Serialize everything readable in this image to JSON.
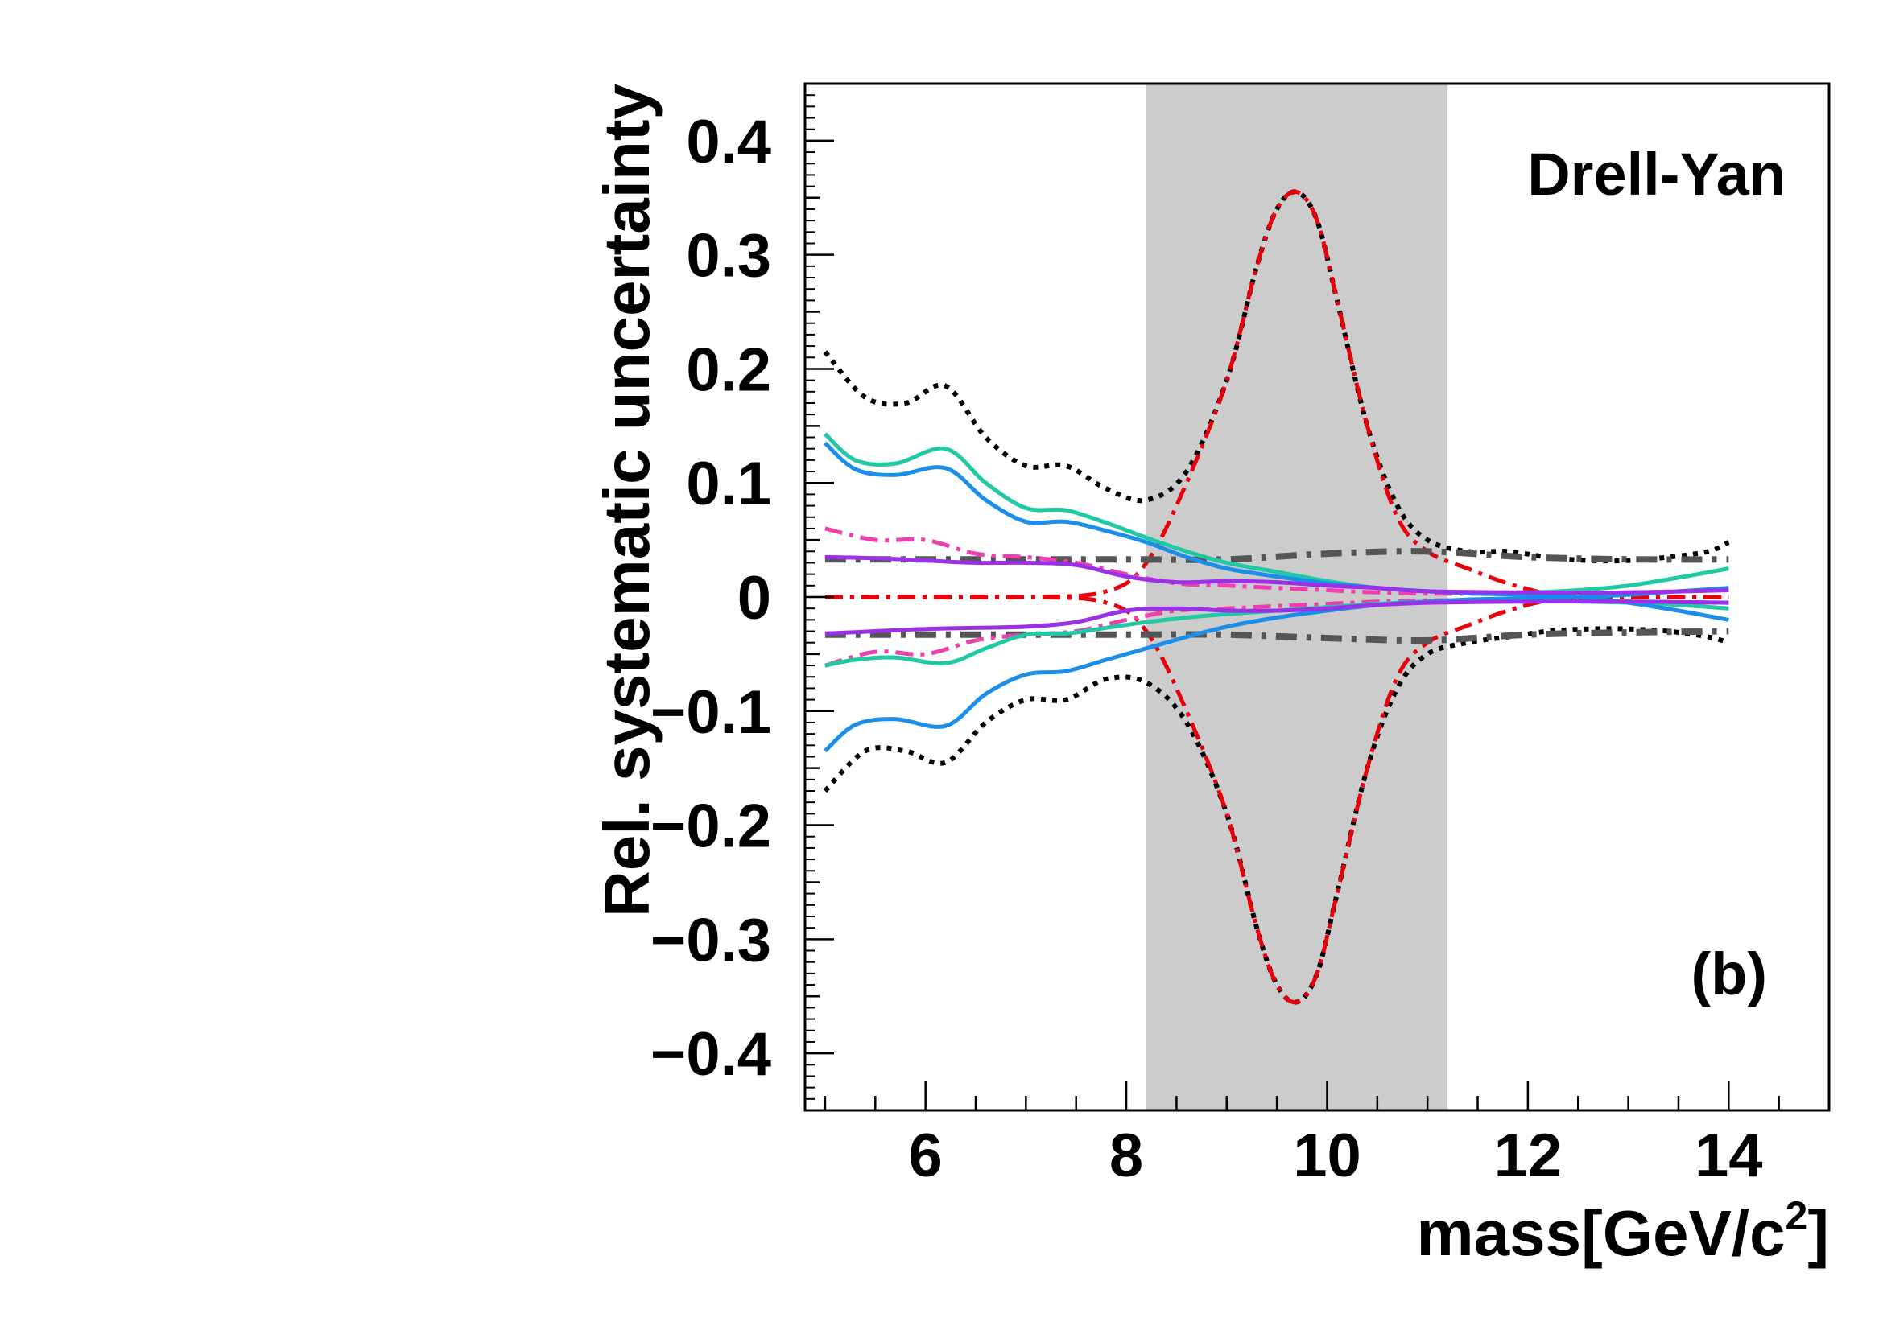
{
  "chart_data": {
    "type": "line",
    "title": "",
    "xlabel": "mass[GeV/c",
    "xlabel_sup": "2",
    "xlabel_end": "]",
    "ylabel": "Rel. systematic uncertainty",
    "xlim": [
      4.8,
      15.0
    ],
    "ylim": [
      -0.45,
      0.45
    ],
    "grid": false,
    "legend": "none",
    "x_ticks": [
      6,
      8,
      10,
      12,
      14
    ],
    "y_ticks": [
      -0.4,
      -0.3,
      -0.2,
      -0.1,
      0,
      0.1,
      0.2,
      0.3,
      0.4
    ],
    "y_tick_labels": [
      "−0.4",
      "−0.3",
      "−0.2",
      "−0.1",
      "0",
      "0.1",
      "0.2",
      "0.3",
      "0.4"
    ],
    "annotations": {
      "process": "Drell-Yan",
      "panel": "(b)"
    },
    "shaded_band": {
      "x": [
        8.2,
        11.2
      ],
      "color": "#cccccc"
    },
    "series": [
      {
        "color": "#000000",
        "style": "dotted",
        "x": [
          5.0,
          5.4,
          5.8,
          6.2,
          6.6,
          7.0,
          7.4,
          7.8,
          8.2,
          8.6,
          9.0,
          9.3,
          9.5,
          9.7,
          9.9,
          10.1,
          10.4,
          10.7,
          11.0,
          11.4,
          11.8,
          12.2,
          12.6,
          13.0,
          13.4,
          13.8,
          14.0
        ],
        "y": [
          0.215,
          0.175,
          0.17,
          0.185,
          0.14,
          0.115,
          0.115,
          0.095,
          0.085,
          0.11,
          0.19,
          0.29,
          0.34,
          0.355,
          0.33,
          0.26,
          0.15,
          0.08,
          0.05,
          0.04,
          0.04,
          0.035,
          0.032,
          0.032,
          0.035,
          0.04,
          0.048
        ]
      },
      {
        "color": "#000000",
        "style": "dotted",
        "x": [
          5.0,
          5.4,
          5.8,
          6.2,
          6.6,
          7.0,
          7.4,
          7.8,
          8.2,
          8.6,
          9.0,
          9.3,
          9.5,
          9.7,
          9.9,
          10.1,
          10.4,
          10.7,
          11.0,
          11.4,
          11.8,
          12.2,
          12.6,
          13.0,
          13.4,
          13.8,
          14.0
        ],
        "y": [
          -0.17,
          -0.135,
          -0.135,
          -0.145,
          -0.11,
          -0.09,
          -0.09,
          -0.072,
          -0.075,
          -0.11,
          -0.19,
          -0.29,
          -0.34,
          -0.355,
          -0.33,
          -0.26,
          -0.15,
          -0.08,
          -0.05,
          -0.04,
          -0.035,
          -0.03,
          -0.028,
          -0.028,
          -0.03,
          -0.035,
          -0.04
        ]
      },
      {
        "color": "#e8000b",
        "style": "dashdot",
        "x": [
          5.0,
          7.0,
          7.8,
          8.2,
          8.6,
          9.0,
          9.3,
          9.5,
          9.7,
          9.9,
          10.1,
          10.4,
          10.7,
          11.0,
          11.4,
          11.8,
          12.2,
          12.6,
          13.0,
          14.0
        ],
        "y": [
          0.0,
          0.0,
          0.005,
          0.03,
          0.1,
          0.19,
          0.29,
          0.34,
          0.355,
          0.33,
          0.26,
          0.15,
          0.07,
          0.04,
          0.025,
          0.012,
          0.003,
          0.0,
          0.0,
          0.0
        ]
      },
      {
        "color": "#e8000b",
        "style": "dashdot",
        "x": [
          5.0,
          7.0,
          7.8,
          8.2,
          8.6,
          9.0,
          9.3,
          9.5,
          9.7,
          9.9,
          10.1,
          10.4,
          10.7,
          11.0,
          11.4,
          11.8,
          12.2,
          12.6,
          13.0,
          14.0
        ],
        "y": [
          0.0,
          0.0,
          -0.005,
          -0.03,
          -0.1,
          -0.19,
          -0.29,
          -0.34,
          -0.355,
          -0.33,
          -0.26,
          -0.15,
          -0.07,
          -0.04,
          -0.025,
          -0.012,
          -0.003,
          0.0,
          0.0,
          0.0
        ]
      },
      {
        "color": "#555555",
        "style": "dashed-thick",
        "x": [
          5.0,
          6.0,
          7.0,
          8.0,
          9.0,
          10.0,
          11.0,
          12.0,
          13.0,
          14.0
        ],
        "y": [
          0.033,
          0.033,
          0.033,
          0.033,
          0.033,
          0.038,
          0.04,
          0.035,
          0.033,
          0.033
        ]
      },
      {
        "color": "#555555",
        "style": "dashed-thick",
        "x": [
          5.0,
          6.0,
          7.0,
          8.0,
          9.0,
          10.0,
          11.0,
          12.0,
          13.0,
          14.0
        ],
        "y": [
          -0.033,
          -0.033,
          -0.033,
          -0.033,
          -0.033,
          -0.036,
          -0.038,
          -0.033,
          -0.031,
          -0.03
        ]
      },
      {
        "color": "#ee3fae",
        "style": "dashdot",
        "x": [
          5.0,
          5.5,
          6.0,
          6.5,
          7.0,
          7.5,
          8.0,
          8.5,
          9.0,
          9.5,
          10.0,
          10.5,
          11.0,
          12.0,
          13.0,
          14.0
        ],
        "y": [
          0.06,
          0.05,
          0.05,
          0.038,
          0.035,
          0.03,
          0.02,
          0.012,
          0.01,
          0.008,
          0.006,
          0.004,
          0.003,
          0.003,
          0.004,
          0.006
        ]
      },
      {
        "color": "#ee3fae",
        "style": "dashdot",
        "x": [
          5.0,
          5.5,
          6.0,
          6.5,
          7.0,
          7.5,
          8.0,
          8.5,
          9.0,
          9.5,
          10.0,
          10.5,
          11.0,
          12.0,
          13.0,
          14.0
        ],
        "y": [
          -0.06,
          -0.048,
          -0.05,
          -0.038,
          -0.033,
          -0.03,
          -0.02,
          -0.012,
          -0.01,
          -0.008,
          -0.006,
          -0.004,
          -0.003,
          -0.003,
          -0.004,
          -0.005
        ]
      },
      {
        "color": "#1fc9a4",
        "style": "solid",
        "x": [
          5.0,
          5.3,
          5.7,
          6.2,
          6.6,
          7.0,
          7.4,
          7.8,
          8.2,
          8.6,
          9.0,
          9.5,
          10.0,
          10.5,
          11.0,
          11.5,
          12.0,
          12.5,
          13.0,
          13.5,
          14.0
        ],
        "y": [
          0.143,
          0.12,
          0.117,
          0.13,
          0.1,
          0.078,
          0.076,
          0.065,
          0.052,
          0.04,
          0.03,
          0.022,
          0.014,
          0.008,
          0.005,
          0.004,
          0.004,
          0.006,
          0.01,
          0.017,
          0.025
        ]
      },
      {
        "color": "#1fc9a4",
        "style": "solid",
        "x": [
          5.0,
          5.3,
          5.7,
          6.2,
          6.6,
          7.0,
          7.4,
          7.8,
          8.2,
          8.6,
          9.0,
          9.5,
          10.0,
          10.5,
          11.0,
          11.5,
          12.0,
          12.5,
          13.0,
          13.5,
          14.0
        ],
        "y": [
          -0.06,
          -0.055,
          -0.053,
          -0.058,
          -0.045,
          -0.033,
          -0.032,
          -0.027,
          -0.022,
          -0.018,
          -0.015,
          -0.012,
          -0.009,
          -0.006,
          -0.004,
          -0.003,
          -0.003,
          -0.004,
          -0.005,
          -0.007,
          -0.01
        ]
      },
      {
        "color": "#1a8ee8",
        "style": "solid",
        "x": [
          5.0,
          5.3,
          5.7,
          6.2,
          6.6,
          7.0,
          7.4,
          7.8,
          8.2,
          8.6,
          9.0,
          9.5,
          10.0,
          10.5,
          11.0,
          11.5,
          12.0,
          12.5,
          13.0,
          13.5,
          14.0
        ],
        "y": [
          0.135,
          0.112,
          0.107,
          0.113,
          0.085,
          0.066,
          0.066,
          0.058,
          0.048,
          0.035,
          0.025,
          0.018,
          0.012,
          0.008,
          0.005,
          0.003,
          0.002,
          0.0,
          -0.005,
          -0.012,
          -0.02
        ]
      },
      {
        "color": "#1a8ee8",
        "style": "solid",
        "x": [
          5.0,
          5.3,
          5.7,
          6.2,
          6.6,
          7.0,
          7.4,
          7.8,
          8.2,
          8.6,
          9.0,
          9.5,
          10.0,
          10.5,
          11.0,
          11.5,
          12.0,
          12.5,
          13.0,
          13.5,
          14.0
        ],
        "y": [
          -0.135,
          -0.112,
          -0.107,
          -0.113,
          -0.085,
          -0.068,
          -0.065,
          -0.055,
          -0.045,
          -0.035,
          -0.026,
          -0.018,
          -0.012,
          -0.007,
          -0.004,
          -0.002,
          -0.001,
          0.0,
          0.002,
          0.005,
          0.008
        ]
      },
      {
        "color": "#9b30e8",
        "style": "solid",
        "x": [
          5.0,
          5.5,
          6.0,
          6.5,
          7.0,
          7.5,
          8.0,
          8.5,
          9.0,
          9.5,
          10.0,
          10.5,
          11.0,
          12.0,
          13.0,
          14.0
        ],
        "y": [
          0.035,
          0.034,
          0.032,
          0.03,
          0.03,
          0.028,
          0.018,
          0.013,
          0.014,
          0.013,
          0.01,
          0.008,
          0.005,
          0.004,
          0.004,
          0.006
        ]
      },
      {
        "color": "#9b30e8",
        "style": "solid",
        "x": [
          5.0,
          5.5,
          6.0,
          6.5,
          7.0,
          7.5,
          8.0,
          8.5,
          9.0,
          9.5,
          10.0,
          10.5,
          11.0,
          12.0,
          13.0,
          14.0
        ],
        "y": [
          -0.032,
          -0.03,
          -0.028,
          -0.027,
          -0.026,
          -0.022,
          -0.012,
          -0.01,
          -0.012,
          -0.012,
          -0.01,
          -0.007,
          -0.005,
          -0.004,
          -0.004,
          -0.005
        ]
      }
    ]
  }
}
